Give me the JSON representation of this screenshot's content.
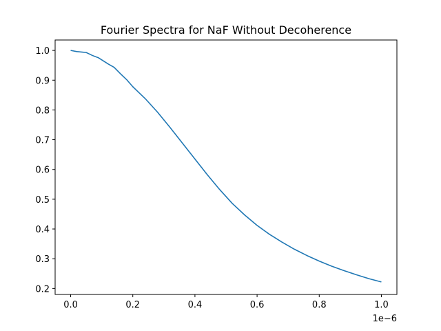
{
  "chart_data": {
    "type": "line",
    "title": "Fourier Spectra for NaF Without Decoherence",
    "xlabel": "",
    "ylabel": "",
    "x_offset_label": "1e−6",
    "xlim": [
      -0.05,
      1.05
    ],
    "ylim": [
      0.18,
      1.035
    ],
    "x_ticks": [
      0.0,
      0.2,
      0.4,
      0.6,
      0.8,
      1.0
    ],
    "x_tick_labels": [
      "0.0",
      "0.2",
      "0.4",
      "0.6",
      "0.8",
      "1.0"
    ],
    "y_ticks": [
      0.2,
      0.3,
      0.4,
      0.5,
      0.6,
      0.7,
      0.8,
      0.9,
      1.0
    ],
    "y_tick_labels": [
      "0.2",
      "0.3",
      "0.4",
      "0.5",
      "0.6",
      "0.7",
      "0.8",
      "0.9",
      "1.0"
    ],
    "grid": false,
    "series": [
      {
        "color": "#1f77b4",
        "x": [
          0.0,
          0.02,
          0.04,
          0.05,
          0.07,
          0.09,
          0.12,
          0.14,
          0.16,
          0.18,
          0.2,
          0.24,
          0.28,
          0.32,
          0.36,
          0.4,
          0.44,
          0.48,
          0.52,
          0.56,
          0.6,
          0.64,
          0.68,
          0.72,
          0.76,
          0.8,
          0.84,
          0.88,
          0.92,
          0.96,
          1.0
        ],
        "y": [
          1.0,
          0.996,
          0.994,
          0.993,
          0.983,
          0.975,
          0.955,
          0.943,
          0.922,
          0.902,
          0.878,
          0.838,
          0.792,
          0.741,
          0.688,
          0.635,
          0.582,
          0.532,
          0.486,
          0.447,
          0.412,
          0.382,
          0.356,
          0.332,
          0.311,
          0.292,
          0.275,
          0.26,
          0.246,
          0.233,
          0.222
        ]
      }
    ]
  }
}
